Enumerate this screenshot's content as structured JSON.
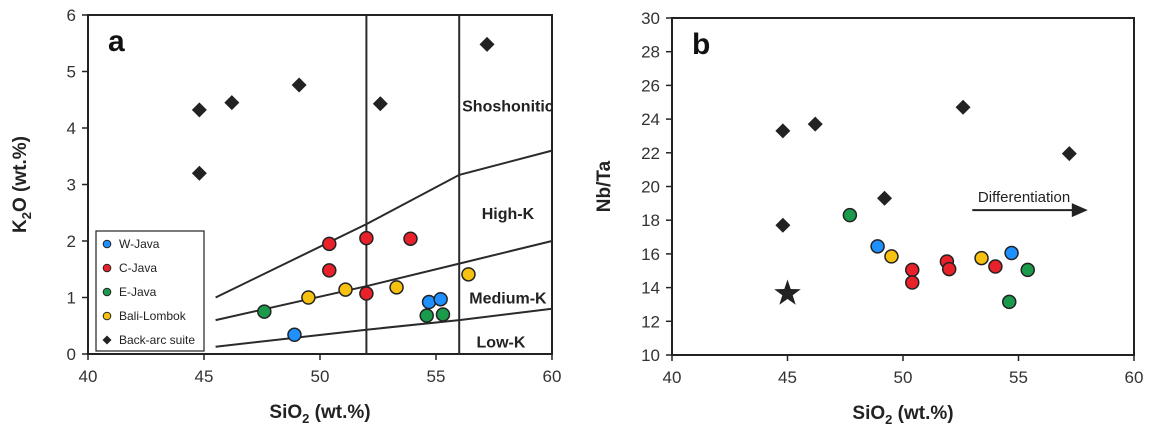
{
  "chart_data": [
    {
      "type": "scatter",
      "panel_label": "a",
      "xlabel": "SiO2 (wt.%)",
      "ylabel": "K2O (wt.%)",
      "xlim": [
        40,
        60
      ],
      "ylim": [
        0,
        6
      ],
      "xticks": [
        40,
        45,
        50,
        55,
        60
      ],
      "yticks": [
        0,
        1,
        2,
        3,
        4,
        5,
        6
      ],
      "field_labels": [
        "Shoshonitic",
        "High-K",
        "Medium-K",
        "Low-K"
      ],
      "vertical_lines_x": [
        52,
        56
      ],
      "boundary_lines": [
        [
          [
            45.5,
            1.0
          ],
          [
            52,
            2.3
          ],
          [
            56,
            3.17
          ],
          [
            60,
            3.6
          ]
        ],
        [
          [
            45.5,
            0.6
          ],
          [
            52,
            1.2
          ],
          [
            56,
            1.6
          ],
          [
            60,
            2.0
          ]
        ],
        [
          [
            45.5,
            0.13
          ],
          [
            52,
            0.43
          ],
          [
            56,
            0.6
          ],
          [
            60,
            0.8
          ]
        ]
      ],
      "legend": {
        "position": "bottom-left",
        "entries": [
          "W-Java",
          "C-Java",
          "E-Java",
          "Bali-Lombok",
          "Back-arc suite"
        ]
      },
      "series": [
        {
          "name": "W-Java",
          "color": "#1e90ff",
          "marker": "circle",
          "points": [
            [
              48.9,
              0.34
            ],
            [
              54.7,
              0.92
            ],
            [
              55.2,
              0.97
            ]
          ]
        },
        {
          "name": "C-Java",
          "color": "#e8212a",
          "marker": "circle",
          "points": [
            [
              50.4,
              1.95
            ],
            [
              52.0,
              2.05
            ],
            [
              53.9,
              2.04
            ],
            [
              50.4,
              1.48
            ],
            [
              52.0,
              1.07
            ]
          ]
        },
        {
          "name": "E-Java",
          "color": "#1a9a4a",
          "marker": "circle",
          "points": [
            [
              47.6,
              0.75
            ],
            [
              54.6,
              0.68
            ],
            [
              55.3,
              0.7
            ]
          ]
        },
        {
          "name": "Bali-Lombok",
          "color": "#f7c20f",
          "marker": "circle",
          "points": [
            [
              49.5,
              1.0
            ],
            [
              51.1,
              1.14
            ],
            [
              53.3,
              1.18
            ],
            [
              56.4,
              1.41
            ]
          ]
        },
        {
          "name": "Back-arc suite",
          "color": "#222222",
          "marker": "diamond",
          "points": [
            [
              44.8,
              4.32
            ],
            [
              44.8,
              3.2
            ],
            [
              46.2,
              4.45
            ],
            [
              49.1,
              4.76
            ],
            [
              52.6,
              4.43
            ],
            [
              57.2,
              5.48
            ]
          ]
        }
      ]
    },
    {
      "type": "scatter",
      "panel_label": "b",
      "xlabel": "SiO2 (wt.%)",
      "ylabel": "Nb/Ta",
      "xlim": [
        40,
        60
      ],
      "ylim": [
        10,
        30
      ],
      "xticks": [
        40,
        45,
        50,
        55,
        60
      ],
      "yticks": [
        10,
        12,
        14,
        16,
        18,
        20,
        22,
        24,
        26,
        28,
        30
      ],
      "annotation": "Differentiation",
      "arrow": [
        [
          53,
          18.6
        ],
        [
          58,
          18.6
        ]
      ],
      "series": [
        {
          "name": "W-Java",
          "color": "#1e90ff",
          "marker": "circle",
          "points": [
            [
              48.9,
              16.45
            ],
            [
              54.7,
              16.05
            ]
          ]
        },
        {
          "name": "C-Java",
          "color": "#e8212a",
          "marker": "circle",
          "points": [
            [
              50.4,
              15.05
            ],
            [
              50.4,
              14.3
            ],
            [
              51.9,
              15.55
            ],
            [
              52.0,
              15.1
            ],
            [
              54.0,
              15.25
            ]
          ]
        },
        {
          "name": "E-Java",
          "color": "#1a9a4a",
          "marker": "circle",
          "points": [
            [
              47.7,
              18.3
            ],
            [
              55.4,
              15.05
            ],
            [
              54.6,
              13.15
            ]
          ]
        },
        {
          "name": "Bali-Lombok",
          "color": "#f7c20f",
          "marker": "circle",
          "points": [
            [
              49.5,
              15.85
            ],
            [
              53.4,
              15.75
            ]
          ]
        },
        {
          "name": "Back-arc suite",
          "color": "#222222",
          "marker": "diamond",
          "points": [
            [
              44.8,
              23.3
            ],
            [
              46.2,
              23.7
            ],
            [
              52.6,
              24.7
            ],
            [
              57.2,
              21.95
            ],
            [
              49.2,
              19.3
            ],
            [
              44.8,
              17.7
            ]
          ]
        },
        {
          "name": "",
          "color": "#222222",
          "marker": "star",
          "points": [
            [
              45.0,
              13.65
            ]
          ]
        }
      ]
    }
  ]
}
